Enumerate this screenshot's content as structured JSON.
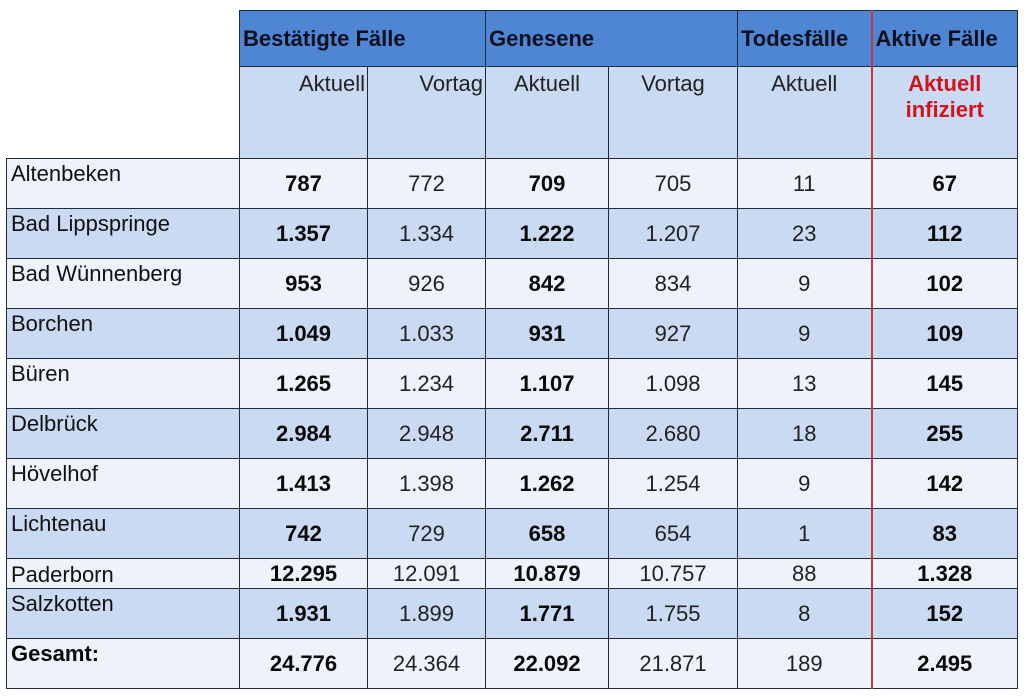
{
  "headers": {
    "confirmed": "Bestätigte Fälle",
    "recovered": "Genesene",
    "deaths": "Todesfälle",
    "active": "Aktive Fälle"
  },
  "subheaders": {
    "aktuell": "Aktuell",
    "vortag": "Vortag",
    "active_line1": "Aktuell",
    "active_line2": "infiziert"
  },
  "rows": [
    {
      "name": "Altenbeken",
      "confirmed_now": "787",
      "confirmed_prev": "772",
      "recovered_now": "709",
      "recovered_prev": "705",
      "deaths": "11",
      "active": "67"
    },
    {
      "name": "Bad Lippspringe",
      "confirmed_now": "1.357",
      "confirmed_prev": "1.334",
      "recovered_now": "1.222",
      "recovered_prev": "1.207",
      "deaths": "23",
      "active": "112"
    },
    {
      "name": "Bad Wünnenberg",
      "confirmed_now": "953",
      "confirmed_prev": "926",
      "recovered_now": "842",
      "recovered_prev": "834",
      "deaths": "9",
      "active": "102"
    },
    {
      "name": "Borchen",
      "confirmed_now": "1.049",
      "confirmed_prev": "1.033",
      "recovered_now": "931",
      "recovered_prev": "927",
      "deaths": "9",
      "active": "109"
    },
    {
      "name": "Büren",
      "confirmed_now": "1.265",
      "confirmed_prev": "1.234",
      "recovered_now": "1.107",
      "recovered_prev": "1.098",
      "deaths": "13",
      "active": "145"
    },
    {
      "name": "Delbrück",
      "confirmed_now": "2.984",
      "confirmed_prev": "2.948",
      "recovered_now": "2.711",
      "recovered_prev": "2.680",
      "deaths": "18",
      "active": "255"
    },
    {
      "name": "Hövelhof",
      "confirmed_now": "1.413",
      "confirmed_prev": "1.398",
      "recovered_now": "1.262",
      "recovered_prev": "1.254",
      "deaths": "9",
      "active": "142"
    },
    {
      "name": "Lichtenau",
      "confirmed_now": "742",
      "confirmed_prev": "729",
      "recovered_now": "658",
      "recovered_prev": "654",
      "deaths": "1",
      "active": "83"
    },
    {
      "name": "Paderborn",
      "confirmed_now": "12.295",
      "confirmed_prev": "12.091",
      "recovered_now": "10.879",
      "recovered_prev": "10.757",
      "deaths": "88",
      "active": "1.328"
    },
    {
      "name": "Salzkotten",
      "confirmed_now": "1.931",
      "confirmed_prev": "1.899",
      "recovered_now": "1.771",
      "recovered_prev": "1.755",
      "deaths": "8",
      "active": "152"
    },
    {
      "name": "Gesamt:",
      "confirmed_now": "24.776",
      "confirmed_prev": "24.364",
      "recovered_now": "22.092",
      "recovered_prev": "21.871",
      "deaths": "189",
      "active": "2.495"
    }
  ]
}
